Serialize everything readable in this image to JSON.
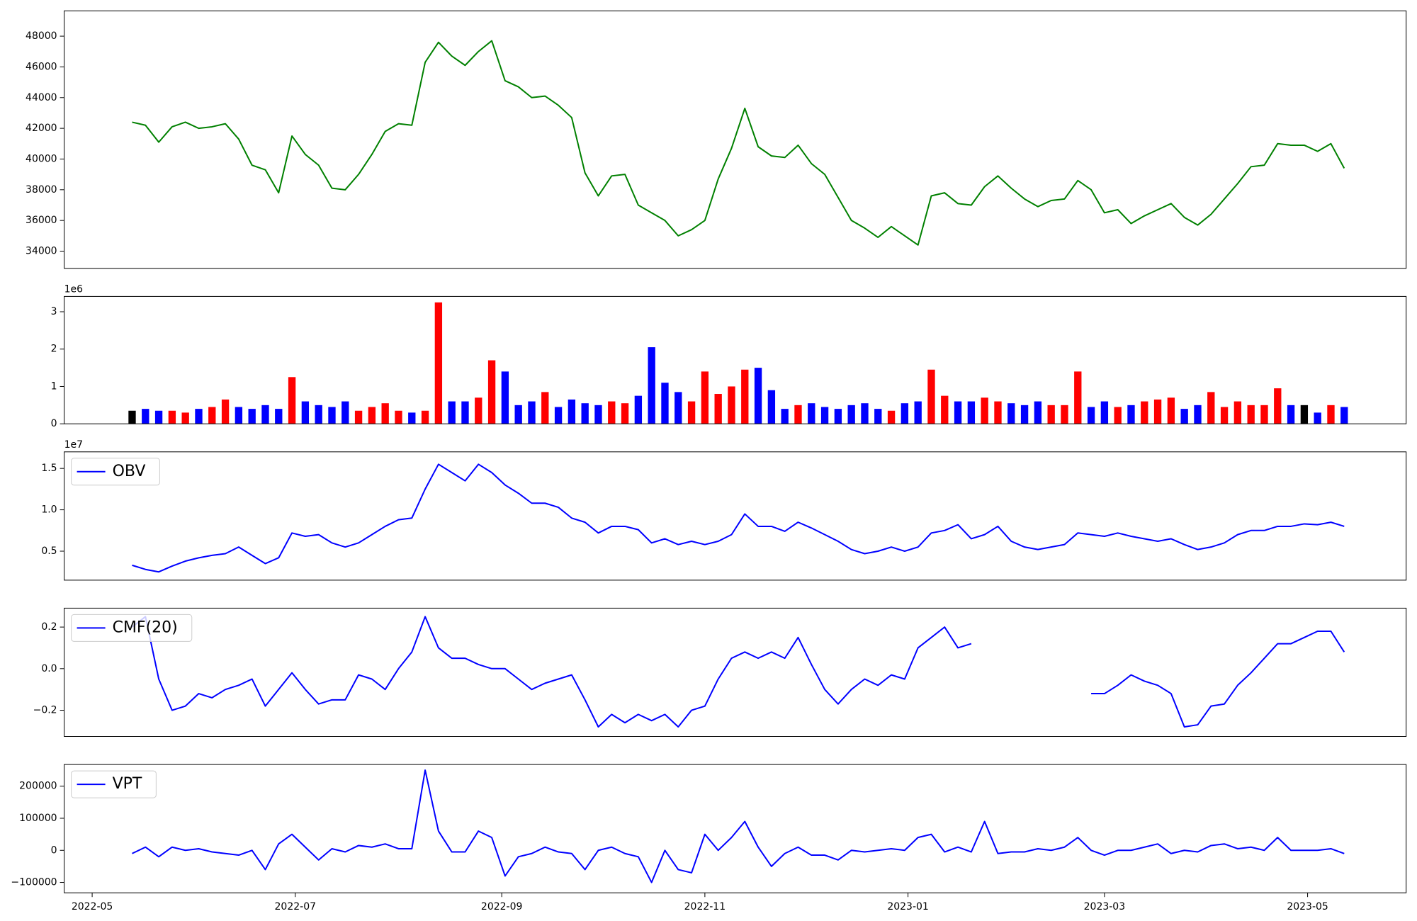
{
  "chart_data": {
    "type": "panels",
    "x": [
      12,
      16,
      20,
      24,
      28,
      32,
      36,
      40,
      44,
      48,
      52,
      56,
      60,
      64,
      68,
      72,
      76,
      80,
      84,
      88,
      92,
      96,
      100,
      104,
      108,
      112,
      116,
      120,
      124,
      128,
      132,
      136,
      140,
      144,
      148,
      152,
      156,
      160,
      164,
      168,
      172,
      176,
      180,
      184,
      188,
      192,
      196,
      200,
      204,
      208,
      212,
      216,
      220,
      224,
      228,
      232,
      236,
      240,
      244,
      248,
      252,
      256,
      260,
      264,
      268,
      272,
      276,
      280,
      284,
      288,
      292,
      296,
      300,
      304,
      308,
      312,
      316,
      320,
      324,
      328,
      332,
      336,
      340,
      344,
      348,
      352,
      356,
      360,
      364,
      368,
      372,
      376
    ],
    "xlim": [
      -8.4,
      394.6
    ],
    "xticks": [
      {
        "value": 0,
        "label": "2022-05"
      },
      {
        "value": 61,
        "label": "2022-07"
      },
      {
        "value": 123,
        "label": "2022-09"
      },
      {
        "value": 184,
        "label": "2022-11"
      },
      {
        "value": 245,
        "label": "2023-01"
      },
      {
        "value": 304,
        "label": "2023-03"
      },
      {
        "value": 365,
        "label": "2023-05"
      }
    ],
    "panels": [
      {
        "type": "line",
        "ylim": [
          32880,
          49650
        ],
        "yticks": [
          34000,
          36000,
          38000,
          40000,
          42000,
          44000,
          46000,
          48000
        ],
        "series": [
          {
            "color": "#008000",
            "values": [
              42400,
              42200,
              41100,
              42100,
              42400,
              42000,
              42100,
              42300,
              41300,
              39600,
              39300,
              37800,
              41500,
              40300,
              39600,
              38100,
              38000,
              39000,
              40300,
              41800,
              42300,
              42200,
              46300,
              47600,
              46700,
              46100,
              47000,
              47700,
              45100,
              44700,
              44000,
              44100,
              43500,
              42700,
              39100,
              37600,
              38900,
              39000,
              37000,
              36500,
              36000,
              35000,
              35400,
              36000,
              38700,
              40700,
              43300,
              40800,
              40200,
              40100,
              40900,
              39700,
              39000,
              37500,
              36000,
              35500,
              34900,
              35600,
              35000,
              34400,
              37600,
              37800,
              37100,
              37000,
              38200,
              38900,
              38100,
              37400,
              36900,
              37300,
              37400,
              38600,
              38000,
              36500,
              36700,
              35800,
              36300,
              36700,
              37100,
              36200,
              35700,
              36400,
              37400,
              38400,
              39500,
              39600,
              41000,
              40900,
              40900,
              40500,
              41000,
              39400
            ]
          }
        ]
      },
      {
        "type": "bar",
        "offset_label": "1e6",
        "ylim": [
          0,
          3.41
        ],
        "yticks": [
          0,
          1,
          2,
          3
        ],
        "up_color": "#ff0000",
        "down_color": "#0000ff",
        "flat_color": "#000000",
        "values": [
          0.35,
          0.4,
          0.35,
          0.35,
          0.3,
          0.4,
          0.45,
          0.65,
          0.45,
          0.4,
          0.5,
          0.4,
          1.25,
          0.6,
          0.5,
          0.45,
          0.6,
          0.35,
          0.45,
          0.55,
          0.35,
          0.3,
          0.35,
          3.25,
          0.6,
          0.6,
          0.7,
          1.7,
          1.4,
          0.5,
          0.6,
          0.85,
          0.45,
          0.65,
          0.55,
          0.5,
          0.6,
          0.55,
          0.75,
          2.05,
          1.1,
          0.85,
          0.6,
          1.4,
          0.8,
          1.0,
          1.45,
          1.5,
          0.9,
          0.4,
          0.5,
          0.55,
          0.45,
          0.4,
          0.5,
          0.55,
          0.4,
          0.35,
          0.55,
          0.6,
          1.45,
          0.75,
          0.6,
          0.6,
          0.7,
          0.6,
          0.55,
          0.5,
          0.6,
          0.5,
          0.5,
          1.4,
          0.45,
          0.6,
          0.45,
          0.5,
          0.6,
          0.65,
          0.7,
          0.4,
          0.5,
          0.85,
          0.45,
          0.6,
          0.5,
          0.5,
          0.95,
          0.5,
          0.5,
          0.3,
          0.5,
          0.45
        ]
      },
      {
        "type": "line",
        "offset_label": "1e7",
        "legend": "upper left",
        "ylim": [
          0.15,
          1.7
        ],
        "yticks": [
          0.5,
          {
            "value": 1,
            "label": "1.0"
          },
          1.5
        ],
        "series": [
          {
            "name": "OBV",
            "color": "#0000ff",
            "values": [
              0.33,
              0.28,
              0.25,
              0.32,
              0.38,
              0.42,
              0.45,
              0.47,
              0.55,
              0.45,
              0.35,
              0.42,
              0.72,
              0.68,
              0.7,
              0.6,
              0.55,
              0.6,
              0.7,
              0.8,
              0.88,
              0.9,
              1.25,
              1.55,
              1.45,
              1.35,
              1.55,
              1.45,
              1.3,
              1.2,
              1.08,
              1.08,
              1.03,
              0.9,
              0.85,
              0.72,
              0.8,
              0.8,
              0.76,
              0.6,
              0.65,
              0.58,
              0.62,
              0.58,
              0.62,
              0.7,
              0.95,
              0.8,
              0.8,
              0.74,
              0.85,
              0.78,
              0.7,
              0.62,
              0.52,
              0.47,
              0.5,
              0.55,
              0.5,
              0.55,
              0.72,
              0.75,
              0.82,
              0.65,
              0.7,
              0.8,
              0.62,
              0.55,
              0.52,
              0.55,
              0.58,
              0.72,
              0.7,
              0.68,
              0.72,
              0.68,
              0.65,
              0.62,
              0.65,
              0.58,
              0.52,
              0.55,
              0.6,
              0.7,
              0.75,
              0.75,
              0.8,
              0.8,
              0.83,
              0.82,
              0.85,
              0.8
            ]
          }
        ]
      },
      {
        "type": "line",
        "legend": "upper left",
        "ylim": [
          -0.326,
          0.291
        ],
        "yticks": [
          {
            "value": -0.2,
            "label": "−0.2"
          },
          {
            "value": 0,
            "label": "0.0"
          },
          0.2
        ],
        "series": [
          {
            "name": "CMF(20)",
            "color": "#0000ff",
            "values": [
              0.2,
              0.25,
              -0.05,
              -0.2,
              -0.18,
              -0.12,
              -0.14,
              -0.1,
              -0.08,
              -0.05,
              -0.18,
              -0.1,
              -0.02,
              -0.1,
              -0.17,
              -0.15,
              -0.15,
              -0.03,
              -0.05,
              -0.1,
              0,
              0.08,
              0.25,
              0.1,
              0.05,
              0.05,
              0.02,
              0,
              0,
              -0.05,
              -0.1,
              -0.07,
              -0.05,
              -0.03,
              -0.15,
              -0.28,
              -0.22,
              -0.26,
              -0.22,
              -0.25,
              -0.22,
              -0.28,
              -0.2,
              -0.18,
              -0.05,
              0.05,
              0.08,
              0.05,
              0.08,
              0.05,
              0.15,
              0.02,
              -0.1,
              -0.17,
              -0.1,
              -0.05,
              -0.08,
              -0.03,
              -0.05,
              0.1,
              0.15,
              0.2,
              0.1,
              0.12,
              null,
              null,
              null,
              null,
              null,
              null,
              null,
              null,
              -0.12,
              -0.12,
              -0.08,
              -0.03,
              -0.06,
              -0.08,
              -0.12,
              -0.28,
              -0.27,
              -0.18,
              -0.17,
              -0.08,
              -0.02,
              0.05,
              0.12,
              0.12,
              0.15,
              0.18,
              0.18,
              0.08
            ]
          }
        ]
      },
      {
        "type": "line",
        "legend": "upper left",
        "ylim": [
          -132400,
          267600
        ],
        "yticks": [
          {
            "value": -100000,
            "label": "−100000"
          },
          0,
          100000,
          200000
        ],
        "series": [
          {
            "name": "VPT",
            "color": "#0000ff",
            "values": [
              -10000,
              10000,
              -20000,
              10000,
              0,
              5000,
              -5000,
              -10000,
              -15000,
              0,
              -60000,
              20000,
              50000,
              10000,
              -30000,
              5000,
              -5000,
              15000,
              10000,
              20000,
              5000,
              5000,
              250000,
              60000,
              -5000,
              -5000,
              60000,
              40000,
              -80000,
              -20000,
              -10000,
              10000,
              -5000,
              -10000,
              -60000,
              0,
              10000,
              -10000,
              -20000,
              -100000,
              0,
              -60000,
              -70000,
              50000,
              0,
              40000,
              90000,
              10000,
              -50000,
              -10000,
              10000,
              -15000,
              -15000,
              -30000,
              0,
              -5000,
              0,
              5000,
              0,
              40000,
              50000,
              -5000,
              10000,
              -5000,
              90000,
              -10000,
              -5000,
              -5000,
              5000,
              0,
              10000,
              40000,
              0,
              -15000,
              0,
              0,
              10000,
              20000,
              -10000,
              0,
              -5000,
              15000,
              20000,
              5000,
              10000,
              0,
              40000,
              0,
              0,
              0,
              5000,
              -10000
            ]
          }
        ]
      }
    ]
  }
}
